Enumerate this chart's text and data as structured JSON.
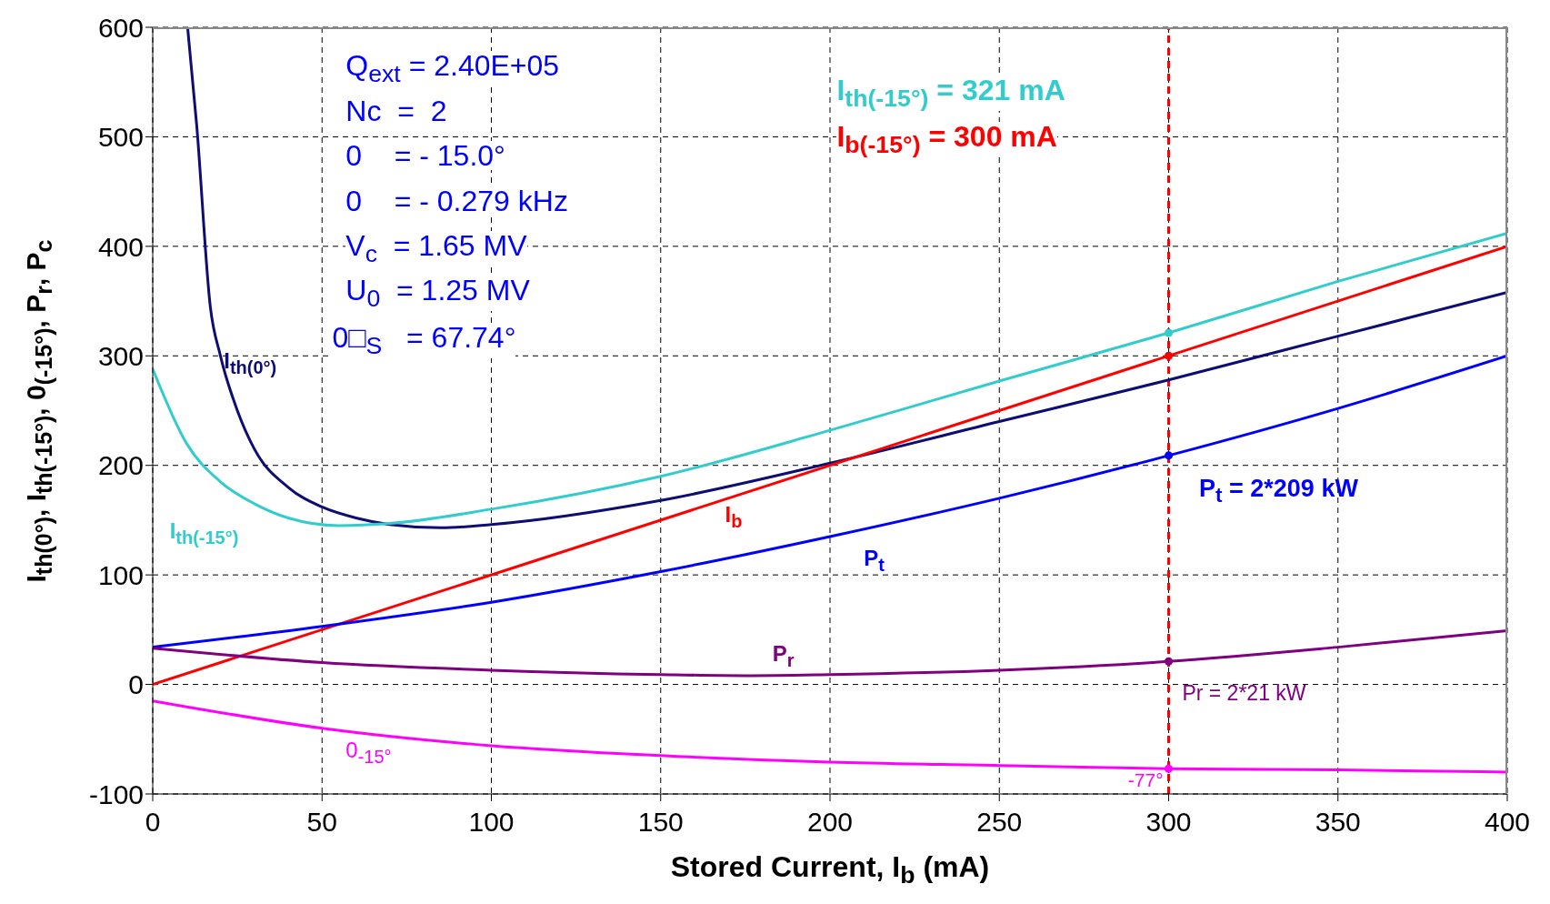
{
  "chart_data": {
    "type": "line",
    "xlabel": "Stored Current, I$_{b}$ (mA)",
    "ylabel": "I$_{th(0°)}$, I$_{th(-15°)}$, 0$_{(-15°)}$, P$_{r}$, P$_{c}$",
    "xlim": [
      0,
      400
    ],
    "xticks": [
      0,
      50,
      100,
      150,
      200,
      250,
      300,
      350,
      400
    ],
    "ylim": [
      -100,
      600
    ],
    "yticks": [
      -100,
      0,
      100,
      200,
      300,
      400,
      500,
      600
    ],
    "grid": true,
    "marker": "none",
    "line_style": "solid",
    "series": [
      {
        "name": "I$_{th(0°)}$",
        "color": "#0d0d73",
        "x": [
          10.3,
          13,
          17,
          20,
          25,
          30,
          40,
          50,
          60,
          70,
          85,
          100,
          150,
          200,
          250,
          300,
          350,
          400
        ],
        "values": [
          600,
          510,
          345,
          300,
          250,
          215,
          180,
          162,
          152,
          146,
          143,
          146,
          168,
          202,
          240,
          278,
          318,
          358
        ]
      },
      {
        "name": "I$_{th(-15°)}$",
        "color": "#33cccc",
        "x": [
          0,
          10,
          20,
          30,
          40,
          55,
          70,
          100,
          150,
          200,
          250,
          300,
          350,
          400
        ],
        "values": [
          288,
          220,
          185,
          165,
          152,
          145,
          147,
          160,
          190,
          232,
          277,
          321,
          368,
          412
        ]
      },
      {
        "name": "I$_{b}$",
        "color": "#ff0000",
        "x": [
          0,
          400
        ],
        "values": [
          0,
          400
        ]
      },
      {
        "name": "P$_{t}$",
        "color": "#0000ff",
        "x": [
          0,
          50,
          100,
          150,
          200,
          250,
          300,
          350,
          400
        ],
        "values": [
          34,
          53,
          75,
          103,
          135,
          170,
          209,
          252,
          300
        ]
      },
      {
        "name": "P$_{r}$",
        "color": "#800080",
        "x": [
          0,
          50,
          100,
          150,
          175,
          200,
          250,
          300,
          350,
          400
        ],
        "values": [
          33,
          20,
          13,
          9,
          8,
          9,
          13,
          21,
          34,
          49
        ]
      },
      {
        "name": "0$_{-15°}$",
        "color": "#ff00ff",
        "x": [
          0,
          50,
          100,
          150,
          200,
          250,
          300,
          350,
          400
        ],
        "values": [
          -15,
          -40,
          -56,
          -65,
          -71,
          -74,
          -77,
          -78,
          -80
        ]
      },
      {
        "type": "scatter",
        "marker": "circle",
        "color": "#33cccc",
        "x": [
          300
        ],
        "values": [
          321
        ]
      },
      {
        "type": "scatter",
        "marker": "circle",
        "color": "#ff0000",
        "x": [
          300
        ],
        "values": [
          300
        ]
      },
      {
        "type": "scatter",
        "marker": "circle",
        "color": "#0000ff",
        "x": [
          300
        ],
        "values": [
          209
        ]
      },
      {
        "type": "scatter",
        "marker": "circle",
        "color": "#800080",
        "x": [
          300
        ],
        "values": [
          21
        ]
      },
      {
        "type": "scatter",
        "marker": "circle",
        "color": "#ff00ff",
        "x": [
          300
        ],
        "values": [
          -77
        ]
      }
    ],
    "ref_lines": [
      {
        "axis": "x",
        "value": 300,
        "color": "#ff0000",
        "line_style": "dashed"
      }
    ],
    "annotations": [
      "Q$_{ext}$ = 2.40E+05",
      "Nc  =  2",
      "0    = - 15.0°",
      "0    = - 0.279 kHz",
      "V$_{c}$  = 1.65 MV",
      "U$_{0}$  = 1.25 MV",
      "0□$_{S}$   = 67.74°",
      "I$_{th(-15°)}$ = 321 mA",
      "I$_{b(-15°)}$ = 300 mA",
      "P$_{t}$ = 2*209 kW",
      "Pr = 2*21 kW",
      "-77°"
    ]
  }
}
